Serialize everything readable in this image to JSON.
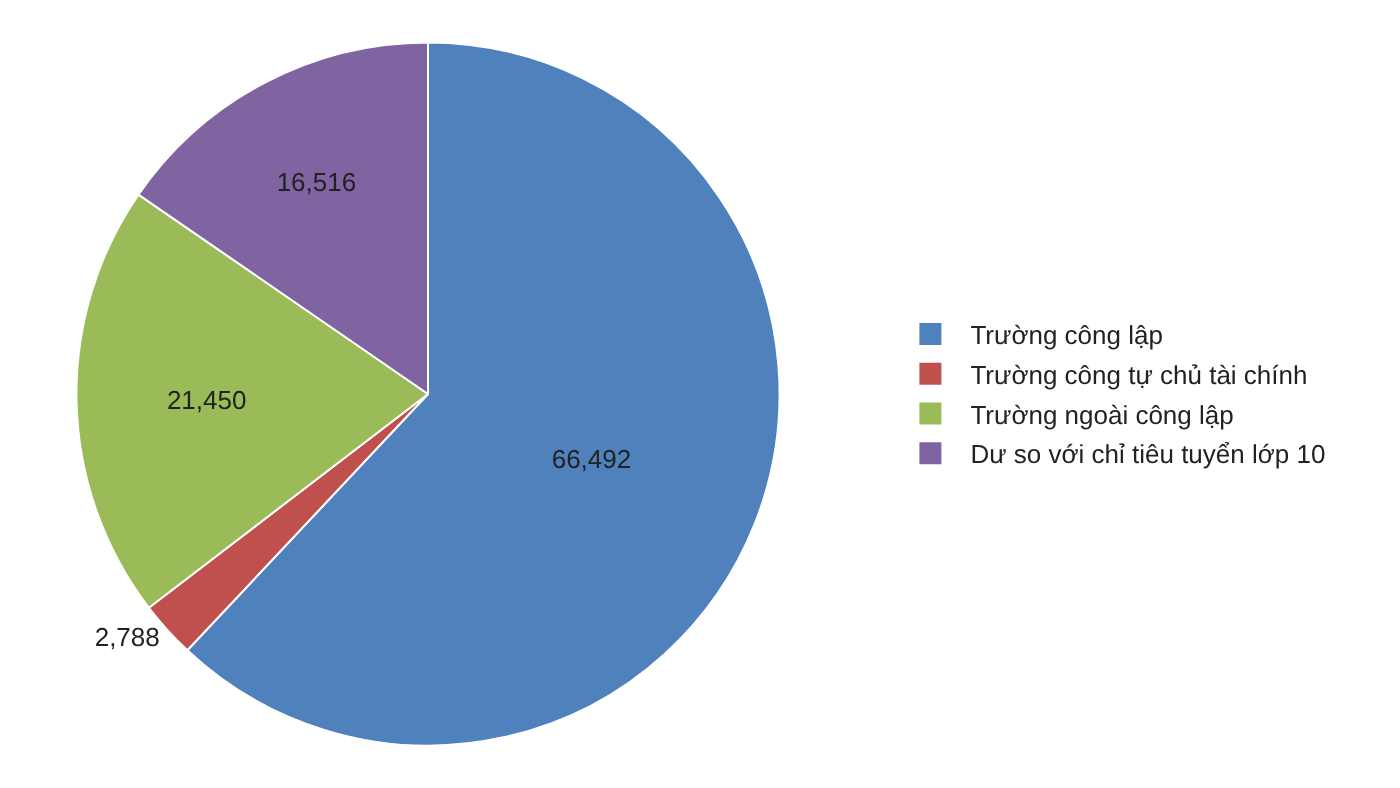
{
  "chart_data": {
    "type": "pie",
    "categories": [
      "Trường công lập",
      "Trường công tự chủ tài chính",
      "Trường ngoài công lập",
      "Dư so với chỉ tiêu tuyển lớp 10"
    ],
    "values": [
      66492,
      2788,
      21450,
      16516
    ],
    "colors": [
      "#4f81bd",
      "#c0504d",
      "#9bbb59",
      "#8064a2"
    ],
    "value_labels": [
      "66,492",
      "2,788",
      "21,450",
      "16,516"
    ],
    "legend": "right"
  }
}
